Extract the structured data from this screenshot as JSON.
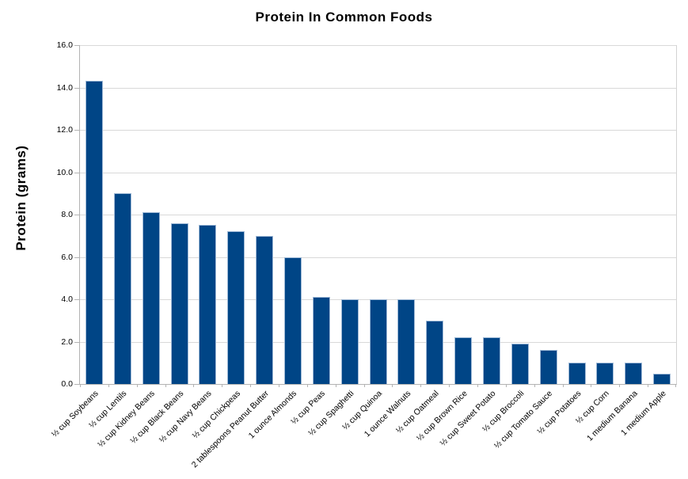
{
  "chart_data": {
    "type": "bar",
    "title": "Protein In Common Foods",
    "xlabel": "",
    "ylabel": "Protein (grams)",
    "categories": [
      "½ cup Soybeans",
      "½ cup Lentils",
      "½ cup Kidney Beans",
      "½ cup Black Beans",
      "½ cup Navy Beans",
      "½ cup Chickpeas",
      "2 tablespoons Peanut Butter",
      "1 ounce Almonds",
      "½ cup Peas",
      "½ cup Spaghetti",
      "½ cup Quinoa",
      "1 ounce Walnuts",
      "½ cup Oatmeal",
      "½ cup Brown Rice",
      "½ cup Sweet Potato",
      "½ cup Broccoli",
      "½ cup Tomato Sauce",
      "½ cup Potatoes",
      "½ cup Corn",
      "1 medium Banana",
      "1 medium Apple"
    ],
    "values": [
      14.3,
      9.0,
      8.1,
      7.6,
      7.5,
      7.2,
      7.0,
      6.0,
      4.1,
      4.0,
      4.0,
      4.0,
      3.0,
      2.2,
      2.2,
      1.9,
      1.6,
      1.0,
      1.0,
      1.0,
      0.5
    ],
    "ylim": [
      0,
      16
    ],
    "ytick_step": 2,
    "ytick_labels": [
      "0.0",
      "2.0",
      "4.0",
      "6.0",
      "8.0",
      "10.0",
      "12.0",
      "14.0",
      "16.0"
    ],
    "grid": "horizontal",
    "legend": "none",
    "colors": {
      "bar_fill": "#004586",
      "bar_border": "#9fb9d6",
      "gridline": "#d9d9d9",
      "axis_line": "#b3b3b3",
      "text": "#000000",
      "background": "#ffffff"
    }
  }
}
